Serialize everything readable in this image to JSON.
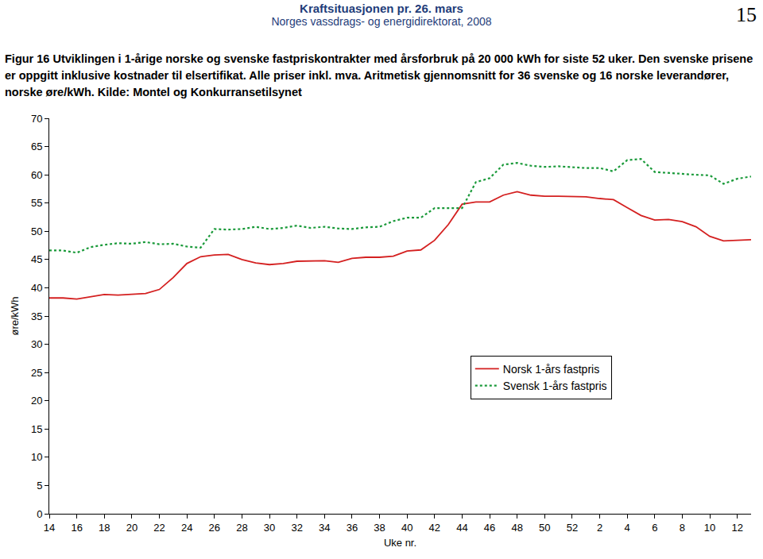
{
  "header": {
    "title": "Kraftsituasjonen pr. 26. mars",
    "subtitle": "Norges vassdrags- og energidirektorat, 2008",
    "page": "15"
  },
  "chart_data": {
    "type": "line",
    "title": "Figur 16 Utviklingen i 1-årige norske og svenske fastpriskontrakter med årsforbruk på 20 000 kWh for siste 52 uker. Den svenske prisene er oppgitt inklusive kostnader til elsertifikat. Alle priser inkl. mva. Aritmetisk gjennomsnitt for 36 svenske og 16 norske leverandører, norske øre/kWh. Kilde: Montel og Konkurransetilsynet",
    "x_label": "Uke nr.",
    "y_label": "øre/kWh",
    "categories": [
      "14",
      null,
      "16",
      null,
      "18",
      null,
      "20",
      null,
      "22",
      null,
      "24",
      null,
      "26",
      null,
      "28",
      null,
      "30",
      null,
      "32",
      null,
      "34",
      null,
      "36",
      null,
      "38",
      null,
      "40",
      null,
      "42",
      null,
      "44",
      null,
      "46",
      null,
      "48",
      null,
      "50",
      null,
      "52",
      null,
      "2",
      null,
      "4",
      null,
      "6",
      null,
      "8",
      null,
      "10",
      null,
      "12",
      null
    ],
    "series": [
      {
        "name": "Norsk 1-års fastpris",
        "color": "#d42020",
        "line_style": "solid",
        "values": [
          38.2,
          38.2,
          38.0,
          38.4,
          38.8,
          38.7,
          38.8,
          39.0,
          39.7,
          41.8,
          44.3,
          45.5,
          45.8,
          45.9,
          45.0,
          44.4,
          44.1,
          44.3,
          44.7,
          44.8,
          44.8,
          44.5,
          45.2,
          45.4,
          45.4,
          45.6,
          46.5,
          46.7,
          48.4,
          51.2,
          54.8,
          55.2,
          55.2,
          56.4,
          57.0,
          56.4,
          56.2,
          56.2,
          56.1,
          56.1,
          55.8,
          55.6,
          54.2,
          52.8,
          52.0,
          52.1,
          51.7,
          50.8,
          49.1,
          48.3,
          48.4,
          48.5
        ]
      },
      {
        "name": "Svensk 1-års fastpris",
        "color": "#1a9a3a",
        "line_style": "dot",
        "values": [
          46.6,
          46.6,
          46.2,
          47.2,
          47.6,
          47.9,
          47.8,
          48.1,
          47.7,
          47.8,
          47.3,
          47.1,
          50.4,
          50.3,
          50.4,
          50.8,
          50.4,
          50.6,
          51.0,
          50.6,
          50.8,
          50.5,
          50.4,
          50.7,
          50.8,
          51.8,
          52.4,
          52.4,
          54.1,
          54.1,
          54.1,
          58.7,
          59.4,
          61.8,
          62.1,
          61.6,
          61.4,
          61.5,
          61.3,
          61.2,
          61.2,
          60.6,
          62.6,
          62.8,
          60.5,
          60.3,
          60.2,
          60.0,
          59.9,
          58.4,
          59.3,
          59.7
        ]
      }
    ],
    "ylim": [
      0,
      70
    ],
    "yticks": [
      0,
      5,
      10,
      15,
      20,
      25,
      30,
      35,
      40,
      45,
      50,
      55,
      60,
      65,
      70
    ],
    "grid": false,
    "legend": "right"
  }
}
